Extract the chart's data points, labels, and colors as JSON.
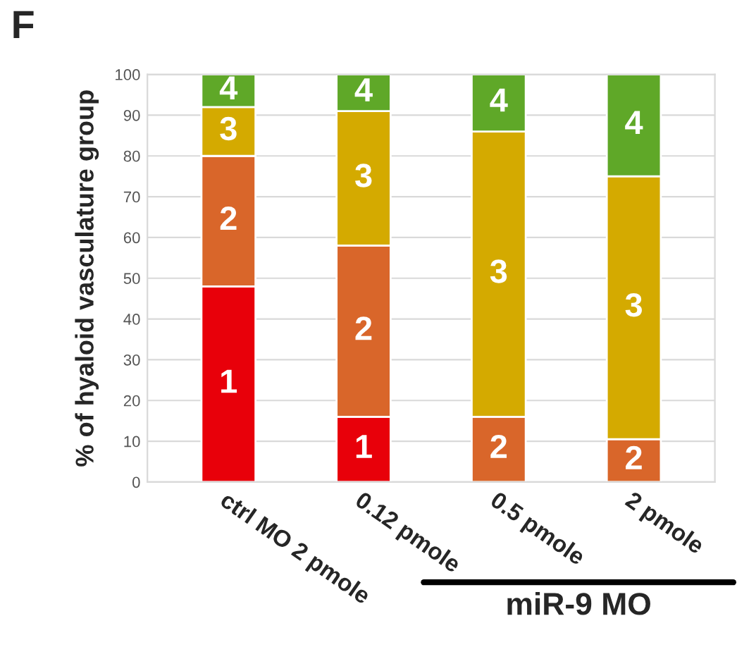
{
  "chart_data": {
    "type": "bar",
    "stacked": true,
    "ylabel": "% of hyaloid vasculature group",
    "categories": [
      "ctrl MO 2 pmole",
      "0.12 pmole",
      "0.5 pmole",
      "2 pmole"
    ],
    "series": [
      {
        "name": "1",
        "color": "#e8000a",
        "values": [
          48,
          16,
          0,
          0
        ]
      },
      {
        "name": "2",
        "color": "#d9662a",
        "values": [
          32,
          42,
          16,
          10.5
        ]
      },
      {
        "name": "3",
        "color": "#d4aa00",
        "values": [
          12,
          33,
          70,
          64.5
        ]
      },
      {
        "name": "4",
        "color": "#5fa828",
        "values": [
          8,
          9,
          14,
          25
        ]
      }
    ],
    "ylim": [
      0,
      100
    ],
    "yticks": [
      0,
      10,
      20,
      30,
      40,
      50,
      60,
      70,
      80,
      90,
      100
    ],
    "grid": "y",
    "legend": false,
    "annotations": [
      "F",
      "miR-9 MO"
    ]
  }
}
